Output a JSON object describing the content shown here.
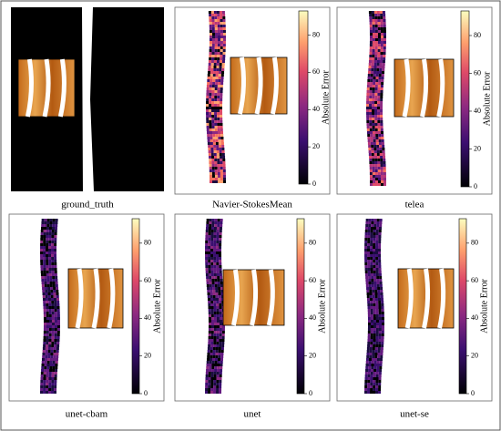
{
  "chart_data": [
    {
      "type": "image",
      "title": "ground_truth"
    },
    {
      "type": "heatmap",
      "title": "Navier-StokesMean",
      "colorbar_label": "Absolute Error",
      "ylim": [
        0,
        93
      ],
      "yticks": [
        0,
        20,
        40,
        60,
        80
      ]
    },
    {
      "type": "heatmap",
      "title": "telea",
      "colorbar_label": "Absolute Error",
      "ylim": [
        0,
        93
      ],
      "yticks": [
        0,
        20,
        40,
        60,
        80
      ]
    },
    {
      "type": "heatmap",
      "title": "unet-cbam",
      "colorbar_label": "Absolute Error",
      "ylim": [
        0,
        93
      ],
      "yticks": [
        0,
        20,
        40,
        60,
        80
      ]
    },
    {
      "type": "heatmap",
      "title": "unet",
      "colorbar_label": "Absolute Error",
      "ylim": [
        0,
        93
      ],
      "yticks": [
        0,
        20,
        40,
        60,
        80
      ]
    },
    {
      "type": "heatmap",
      "title": "unet-se",
      "colorbar_label": "Absolute Error",
      "ylim": [
        0,
        93
      ],
      "yticks": [
        0,
        20,
        40,
        60,
        80
      ]
    }
  ]
}
